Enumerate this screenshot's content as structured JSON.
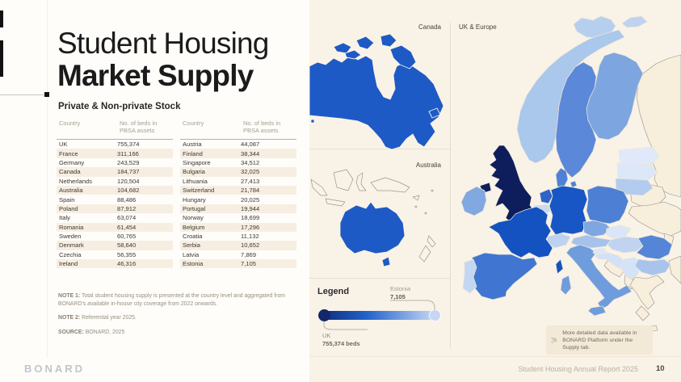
{
  "page": {
    "title_line1": "Student Housing",
    "title_line2": "Market Supply",
    "subtitle": "Private & Non-private Stock"
  },
  "tables": {
    "col_country": "Country",
    "col_beds": "No. of beds in PBSA assets",
    "left_rows": [
      [
        "UK",
        "755,374"
      ],
      [
        "France",
        "311,166"
      ],
      [
        "Germany",
        "243,529"
      ],
      [
        "Canada",
        "184,737"
      ],
      [
        "Netherlands",
        "120,504"
      ],
      [
        "Australia",
        "104,682"
      ],
      [
        "Spain",
        "88,486"
      ],
      [
        "Poland",
        "87,912"
      ],
      [
        "Italy",
        "63,074"
      ],
      [
        "Romania",
        "61,454"
      ],
      [
        "Sweden",
        "60,765"
      ],
      [
        "Denmark",
        "58,640"
      ],
      [
        "Czechia",
        "56,355"
      ],
      [
        "Ireland",
        "46,316"
      ]
    ],
    "right_rows": [
      [
        "Austria",
        "44,087"
      ],
      [
        "Finland",
        "38,344"
      ],
      [
        "Singapore",
        "34,512"
      ],
      [
        "Bulgaria",
        "32,025"
      ],
      [
        "Lithuania",
        "27,413"
      ],
      [
        "Switzerland",
        "21,784"
      ],
      [
        "Hungary",
        "20,025"
      ],
      [
        "Portugal",
        "19,944"
      ],
      [
        "Norway",
        "18,699"
      ],
      [
        "Belgium",
        "17,296"
      ],
      [
        "Croatia",
        "11,132"
      ],
      [
        "Serbia",
        "10,652"
      ],
      [
        "Latvia",
        "7,869"
      ],
      [
        "Estonia",
        "7,105"
      ]
    ]
  },
  "notes": {
    "note1_label": "NOTE 1:",
    "note1_text": " Total student housing supply is presented at the country level and aggregated from BONARD's available in-house city coverage from 2022 onwards.",
    "note2_label": "NOTE 2:",
    "note2_text": " Referential year 2025.",
    "source_label": "SOURCE:",
    "source_text": " BONARD, 2025"
  },
  "maps": {
    "canada_label": "Canada",
    "europe_label": "UK & Europe",
    "australia_label": "Australia"
  },
  "legend": {
    "title": "Legend",
    "max_country": "UK",
    "max_value": "755,374 beds",
    "min_country": "Estonia",
    "min_value": "7,105"
  },
  "callout": {
    "text": "More detailed data available in BONARD Platform under the Supply tab."
  },
  "footer": {
    "brand": "BONARD",
    "report": "Student Housing Annual Report 2025",
    "page": "10"
  },
  "colors": {
    "page_cream": "#f9f2e7",
    "panel_white": "#fefdfa",
    "alt_row": "#f6eee1",
    "legend_start": "#0b2a78",
    "legend_mid": "#2463cb",
    "legend_end": "#d3e1f7",
    "legend_dot_left": "#13276b",
    "legend_dot_right": "#c6d7f2"
  },
  "map_colors": {
    "standalone_fill": "#1d5ac6",
    "no_data_fill": "#f7eedc",
    "countries": {
      "uk": "#0e1e5c",
      "france": "#1452c1",
      "germany": "#1756c4",
      "netherlands": "#2e63c9",
      "spain": "#4076d1",
      "poland": "#4d80d5",
      "italy": "#6f9cdd",
      "romania": "#5585d6",
      "sweden": "#5b88d8",
      "denmark": "#4f82d6",
      "czechia": "#7ea6e1",
      "ireland": "#81a8e1",
      "austria": "#a6c2eb",
      "finland": "#7da6e0",
      "bulgaria": "#a9c4ec",
      "lithuania": "#b3cbee",
      "switzerland": "#bcd2f0",
      "hungary": "#c0d4f1",
      "portugal": "#c3d6f2",
      "norway": "#aac7ec",
      "belgium": "#c8daf3",
      "croatia": "#d3e1f6",
      "serbia": "#d5e3f6",
      "latvia": "#dce7f8",
      "estonia": "#dfe9f9",
      "iceland": "#b7cfef",
      "svalbard": "#bdd3f0",
      "slovenia": "#dce8f8",
      "slovakia": "#d9e6f8"
    }
  }
}
